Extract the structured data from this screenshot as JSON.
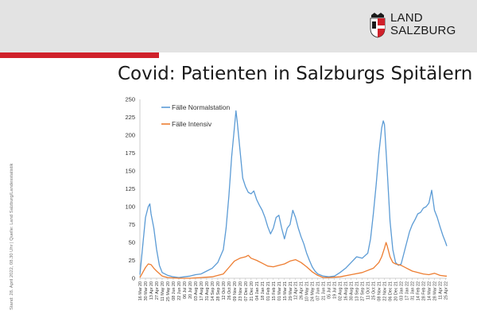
{
  "header": {
    "logo_text_line1": "LAND",
    "logo_text_line2": "SALZBURG"
  },
  "page_title": "Covid: Patienten in Salzburgs Spitälern",
  "side_note": "Stand: 28. April 2022, 08.30 Uhr | Quelle: Land Salzburg/Landesstatistik",
  "colors": {
    "brand_red": "#d0202a",
    "normal": "#5b9bd5",
    "intensive": "#ed7d31"
  },
  "chart_data": {
    "type": "line",
    "title": "",
    "xlabel": "",
    "ylabel": "",
    "ylim": [
      0,
      250
    ],
    "yticks": [
      0,
      25,
      50,
      75,
      100,
      125,
      150,
      175,
      200,
      225,
      250
    ],
    "grid": false,
    "legend_position": "top-left",
    "x_range": [
      "16 Mar 20",
      "28 Apr 22"
    ],
    "xtick_labels": [
      "16 Mar 20",
      "30 Mar 20",
      "13 Apr 20",
      "27 Apr 20",
      "11 May 20",
      "25 May 20",
      "08 Jun 20",
      "22 Jun 20",
      "06 Jul 20",
      "20 Jul 20",
      "03 Aug 20",
      "17 Aug 20",
      "31 Aug 20",
      "14 Sep 20",
      "28 Sep 20",
      "12 Oct 20",
      "26 Oct 20",
      "09 Nov 20",
      "23 Nov 20",
      "07 Dec 20",
      "21 Dec 20",
      "04 Jan 21",
      "18 Jan 21",
      "01 Feb 21",
      "15 Feb 21",
      "01 Mar 21",
      "15 Mar 21",
      "29 Mar 21",
      "12 Apr 21",
      "26 Apr 21",
      "10 May 21",
      "24 May 21",
      "07 Jun 21",
      "21 Jun 21",
      "05 Jul 21",
      "19 Jul 21",
      "02 Aug 21",
      "16 Aug 21",
      "30 Aug 21",
      "13 Sep 21",
      "27 Sep 21",
      "11 Oct 21",
      "25 Oct 21",
      "08 Nov 21",
      "22 Nov 21",
      "06 Dec 21",
      "20 Dec 21",
      "03 Jan 22",
      "17 Jan 22",
      "31 Jan 22",
      "14 Feb 22",
      "28 Feb 22",
      "14 Mar 22",
      "28 Mar 22",
      "11 Apr 22",
      "25 Apr 22"
    ],
    "series": [
      {
        "name": "Fälle Normalstation",
        "color": "#5b9bd5",
        "points": [
          [
            "16 Mar 20",
            5
          ],
          [
            "23 Mar 20",
            45
          ],
          [
            "30 Mar 20",
            85
          ],
          [
            "06 Apr 20",
            100
          ],
          [
            "10 Apr 20",
            104
          ],
          [
            "13 Apr 20",
            90
          ],
          [
            "20 Apr 20",
            70
          ],
          [
            "27 Apr 20",
            40
          ],
          [
            "04 May 20",
            18
          ],
          [
            "11 May 20",
            8
          ],
          [
            "25 May 20",
            4
          ],
          [
            "08 Jun 20",
            2
          ],
          [
            "22 Jun 20",
            1
          ],
          [
            "06 Jul 20",
            2
          ],
          [
            "20 Jul 20",
            3
          ],
          [
            "03 Aug 20",
            5
          ],
          [
            "17 Aug 20",
            6
          ],
          [
            "31 Aug 20",
            10
          ],
          [
            "14 Sep 20",
            14
          ],
          [
            "28 Sep 20",
            22
          ],
          [
            "12 Oct 20",
            40
          ],
          [
            "19 Oct 20",
            70
          ],
          [
            "26 Oct 20",
            115
          ],
          [
            "02 Nov 20",
            170
          ],
          [
            "09 Nov 20",
            210
          ],
          [
            "13 Nov 20",
            234
          ],
          [
            "16 Nov 20",
            220
          ],
          [
            "23 Nov 20",
            180
          ],
          [
            "30 Nov 20",
            140
          ],
          [
            "07 Dec 20",
            128
          ],
          [
            "14 Dec 20",
            120
          ],
          [
            "21 Dec 20",
            118
          ],
          [
            "28 Dec 20",
            122
          ],
          [
            "04 Jan 21",
            110
          ],
          [
            "11 Jan 21",
            102
          ],
          [
            "18 Jan 21",
            95
          ],
          [
            "25 Jan 21",
            85
          ],
          [
            "01 Feb 21",
            72
          ],
          [
            "08 Feb 21",
            62
          ],
          [
            "15 Feb 21",
            70
          ],
          [
            "22 Feb 21",
            85
          ],
          [
            "01 Mar 21",
            88
          ],
          [
            "08 Mar 21",
            70
          ],
          [
            "15 Mar 21",
            55
          ],
          [
            "22 Mar 21",
            70
          ],
          [
            "29 Mar 21",
            75
          ],
          [
            "05 Apr 21",
            95
          ],
          [
            "12 Apr 21",
            85
          ],
          [
            "19 Apr 21",
            70
          ],
          [
            "26 Apr 21",
            58
          ],
          [
            "03 May 21",
            48
          ],
          [
            "10 May 21",
            35
          ],
          [
            "17 May 21",
            25
          ],
          [
            "24 May 21",
            16
          ],
          [
            "31 May 21",
            10
          ],
          [
            "07 Jun 21",
            6
          ],
          [
            "21 Jun 21",
            3
          ],
          [
            "05 Jul 21",
            2
          ],
          [
            "19 Jul 21",
            3
          ],
          [
            "02 Aug 21",
            8
          ],
          [
            "16 Aug 21",
            14
          ],
          [
            "30 Aug 21",
            22
          ],
          [
            "13 Sep 21",
            30
          ],
          [
            "27 Sep 21",
            28
          ],
          [
            "11 Oct 21",
            35
          ],
          [
            "18 Oct 21",
            55
          ],
          [
            "25 Oct 21",
            90
          ],
          [
            "01 Nov 21",
            130
          ],
          [
            "08 Nov 21",
            175
          ],
          [
            "15 Nov 21",
            210
          ],
          [
            "19 Nov 21",
            220
          ],
          [
            "22 Nov 21",
            215
          ],
          [
            "29 Nov 21",
            150
          ],
          [
            "06 Dec 21",
            80
          ],
          [
            "13 Dec 21",
            40
          ],
          [
            "20 Dec 21",
            22
          ],
          [
            "27 Dec 21",
            18
          ],
          [
            "03 Jan 22",
            20
          ],
          [
            "10 Jan 22",
            35
          ],
          [
            "17 Jan 22",
            50
          ],
          [
            "24 Jan 22",
            65
          ],
          [
            "31 Jan 22",
            75
          ],
          [
            "07 Feb 22",
            82
          ],
          [
            "14 Feb 22",
            90
          ],
          [
            "21 Feb 22",
            92
          ],
          [
            "28 Feb 22",
            98
          ],
          [
            "07 Mar 22",
            100
          ],
          [
            "14 Mar 22",
            105
          ],
          [
            "21 Mar 22",
            123
          ],
          [
            "28 Mar 22",
            95
          ],
          [
            "04 Apr 22",
            85
          ],
          [
            "11 Apr 22",
            72
          ],
          [
            "18 Apr 22",
            60
          ],
          [
            "25 Apr 22",
            50
          ],
          [
            "28 Apr 22",
            45
          ]
        ]
      },
      {
        "name": "Fälle Intensiv",
        "color": "#ed7d31",
        "points": [
          [
            "16 Mar 20",
            1
          ],
          [
            "23 Mar 20",
            8
          ],
          [
            "30 Mar 20",
            15
          ],
          [
            "06 Apr 20",
            20
          ],
          [
            "13 Apr 20",
            19
          ],
          [
            "20 Apr 20",
            14
          ],
          [
            "27 Apr 20",
            10
          ],
          [
            "11 May 20",
            3
          ],
          [
            "25 May 20",
            1
          ],
          [
            "22 Jun 20",
            0
          ],
          [
            "20 Jul 20",
            0
          ],
          [
            "17 Aug 20",
            1
          ],
          [
            "14 Sep 20",
            2
          ],
          [
            "12 Oct 20",
            6
          ],
          [
            "26 Oct 20",
            15
          ],
          [
            "09 Nov 20",
            24
          ],
          [
            "23 Nov 20",
            28
          ],
          [
            "07 Dec 20",
            30
          ],
          [
            "14 Dec 20",
            32
          ],
          [
            "21 Dec 20",
            28
          ],
          [
            "04 Jan 21",
            25
          ],
          [
            "18 Jan 21",
            21
          ],
          [
            "01 Feb 21",
            17
          ],
          [
            "15 Feb 21",
            16
          ],
          [
            "01 Mar 21",
            18
          ],
          [
            "15 Mar 21",
            20
          ],
          [
            "29 Mar 21",
            24
          ],
          [
            "12 Apr 21",
            26
          ],
          [
            "26 Apr 21",
            22
          ],
          [
            "10 May 21",
            16
          ],
          [
            "24 May 21",
            9
          ],
          [
            "07 Jun 21",
            4
          ],
          [
            "21 Jun 21",
            1
          ],
          [
            "05 Jul 21",
            1
          ],
          [
            "02 Aug 21",
            2
          ],
          [
            "30 Aug 21",
            5
          ],
          [
            "27 Sep 21",
            8
          ],
          [
            "25 Oct 21",
            14
          ],
          [
            "08 Nov 21",
            22
          ],
          [
            "15 Nov 21",
            30
          ],
          [
            "22 Nov 21",
            42
          ],
          [
            "26 Nov 21",
            50
          ],
          [
            "29 Nov 21",
            45
          ],
          [
            "06 Dec 21",
            30
          ],
          [
            "13 Dec 21",
            22
          ],
          [
            "20 Dec 21",
            20
          ],
          [
            "03 Jan 22",
            18
          ],
          [
            "17 Jan 22",
            14
          ],
          [
            "31 Jan 22",
            10
          ],
          [
            "14 Feb 22",
            8
          ],
          [
            "28 Feb 22",
            6
          ],
          [
            "14 Mar 22",
            5
          ],
          [
            "28 Mar 22",
            7
          ],
          [
            "11 Apr 22",
            4
          ],
          [
            "25 Apr 22",
            3
          ],
          [
            "28 Apr 22",
            3
          ]
        ]
      }
    ]
  }
}
